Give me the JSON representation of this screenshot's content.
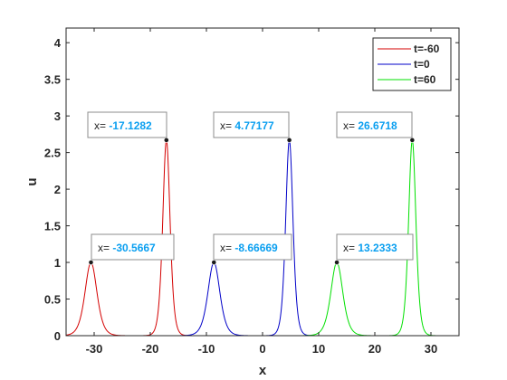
{
  "chart_data": {
    "type": "line",
    "title": "",
    "xlabel": "x",
    "ylabel": "u",
    "xlim": [
      -35,
      35
    ],
    "ylim": [
      0,
      4.2
    ],
    "xticks": [
      "-30",
      "-20",
      "-10",
      "0",
      "10",
      "20",
      "30"
    ],
    "yticks": [
      "0",
      "0.5",
      "1",
      "1.5",
      "2",
      "2.5",
      "3",
      "3.5",
      "4"
    ],
    "grid": false,
    "legend_position": "top-right",
    "series": [
      {
        "name": "t=-60",
        "color": "#d40000",
        "peaks": [
          {
            "x": -30.5667,
            "y": 1.0,
            "label_prefix": "x= ",
            "label_value": "-30.5667"
          },
          {
            "x": -17.1282,
            "y": 2.67,
            "label_prefix": "x= ",
            "label_value": "-17.1282"
          }
        ]
      },
      {
        "name": "t=0",
        "color": "#0000c8",
        "peaks": [
          {
            "x": -8.66669,
            "y": 1.0,
            "label_prefix": "x= ",
            "label_value": "-8.66669"
          },
          {
            "x": 4.77177,
            "y": 2.67,
            "label_prefix": "x= ",
            "label_value": "4.77177"
          }
        ]
      },
      {
        "name": "t=60",
        "color": "#00e000",
        "peaks": [
          {
            "x": 13.2333,
            "y": 1.0,
            "label_prefix": "x= ",
            "label_value": "13.2333"
          },
          {
            "x": 26.6718,
            "y": 2.67,
            "label_prefix": "x= ",
            "label_value": "26.6718"
          }
        ]
      }
    ],
    "annotation_value_color": "#0a9ff0"
  }
}
